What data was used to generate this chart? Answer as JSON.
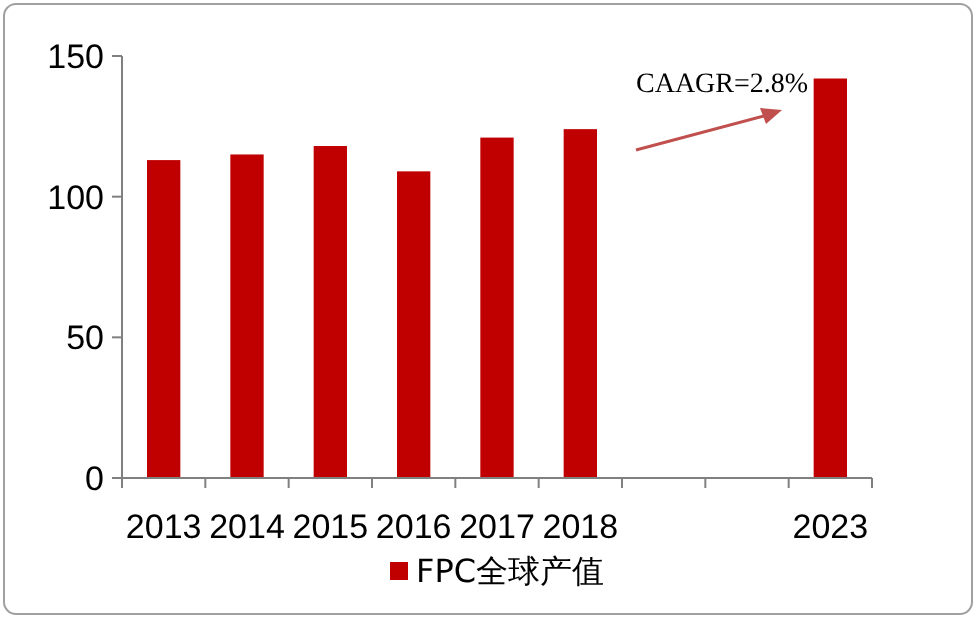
{
  "chart_data": {
    "type": "bar",
    "categories": [
      "2013",
      "2014",
      "2015",
      "2016",
      "2017",
      "2018",
      null,
      null,
      "2023"
    ],
    "series": [
      {
        "name": "FPC全球产值",
        "color": "#c00000",
        "values": [
          113,
          115,
          118,
          109,
          121,
          124,
          null,
          null,
          142
        ]
      }
    ],
    "ylim": [
      0,
      150
    ],
    "yticks": [
      0,
      50,
      100,
      150
    ],
    "legend": "bottom",
    "grid": false,
    "annotations": [
      "CAAGR=2.8%"
    ]
  }
}
